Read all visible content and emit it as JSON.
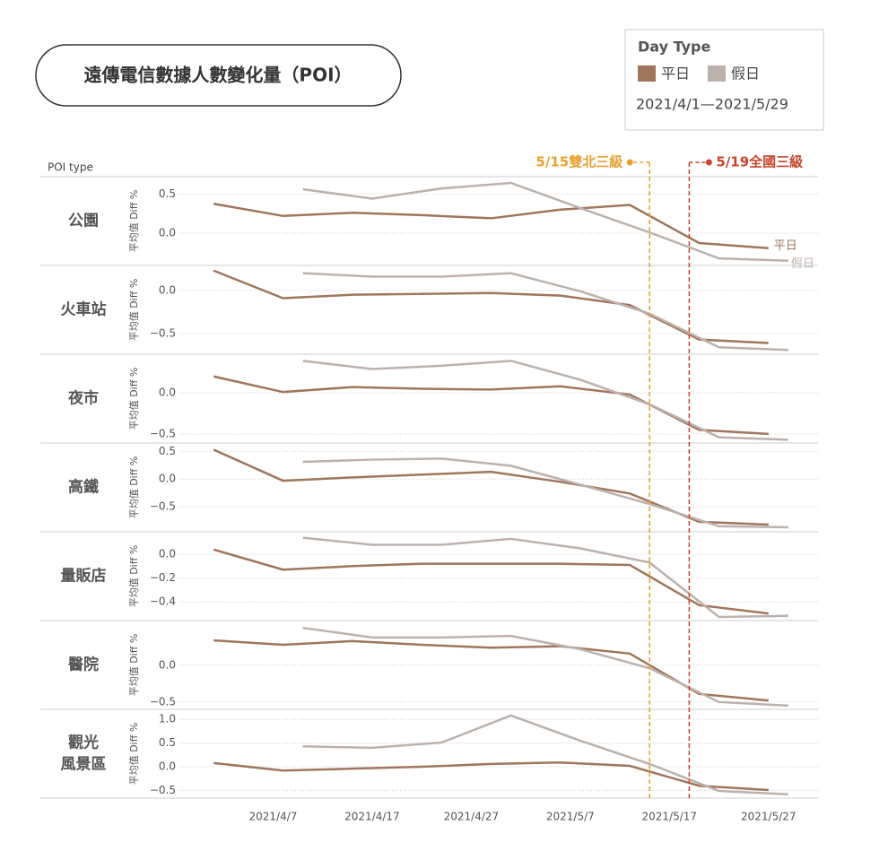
{
  "chart_data": {
    "type": "line",
    "title": "遠傳電信數據人數變化量（POI）",
    "legend_title": "Day Type",
    "date_range": "2021/4/1—2021/5/29",
    "facet_label": "POI type",
    "y_label": "平均值 Diff %",
    "xlim": [
      "2021/3/28",
      "2021/6/1"
    ],
    "xticks": [
      "2021/4/7",
      "2021/4/17",
      "2021/4/27",
      "2021/5/7",
      "2021/5/17",
      "2021/5/27"
    ],
    "series": [
      {
        "name": "平日",
        "color": "#a0765c",
        "x": [
          "2021/4/1",
          "2021/4/8",
          "2021/4/15",
          "2021/4/22",
          "2021/4/29",
          "2021/5/6",
          "2021/5/13",
          "2021/5/20",
          "2021/5/27"
        ]
      },
      {
        "name": "假日",
        "color": "#bcb2ad",
        "x": [
          "2021/4/10",
          "2021/4/17",
          "2021/4/24",
          "2021/5/1",
          "2021/5/8",
          "2021/5/15",
          "2021/5/22",
          "2021/5/29"
        ]
      }
    ],
    "annotations": [
      {
        "x": "2021/5/15",
        "label": "5/15雙北三級",
        "color": "#e8a030"
      },
      {
        "x": "2021/5/19",
        "label": "5/19全國三級",
        "color": "#c8452c"
      }
    ],
    "panels": [
      {
        "name": [
          "公園"
        ],
        "ylim": [
          -0.41,
          0.72
        ],
        "yticks": [
          {
            "value": 0,
            "label": "0.0"
          },
          0.5
        ],
        "series": [
          [
            0.375,
            0.22,
            0.26,
            0.23,
            0.19,
            0.3,
            0.36,
            -0.125,
            -0.19
          ],
          [
            0.56,
            0.44,
            0.57,
            0.64,
            0.32,
            0.01,
            -0.32,
            -0.35
          ]
        ]
      },
      {
        "name": [
          "火車站"
        ],
        "ylim": [
          -0.74,
          0.29
        ],
        "yticks": [
          {
            "value": -0.5,
            "label": "−0.5"
          },
          {
            "value": 0,
            "label": "0.0"
          }
        ],
        "series": [
          [
            0.23,
            -0.09,
            -0.05,
            -0.04,
            -0.03,
            -0.06,
            -0.17,
            -0.57,
            -0.61
          ],
          [
            0.2,
            0.16,
            0.16,
            0.2,
            -0.01,
            -0.27,
            -0.66,
            -0.69
          ]
        ]
      },
      {
        "name": [
          "夜市"
        ],
        "ylim": [
          -0.61,
          0.47
        ],
        "yticks": [
          {
            "value": -0.5,
            "label": "−0.5"
          },
          {
            "value": 0,
            "label": "0.0"
          }
        ],
        "series": [
          [
            0.2,
            0.01,
            0.07,
            0.05,
            0.04,
            0.08,
            -0.02,
            -0.45,
            -0.5
          ],
          [
            0.39,
            0.29,
            0.33,
            0.39,
            0.16,
            -0.14,
            -0.54,
            -0.57
          ]
        ]
      },
      {
        "name": [
          "高鐵"
        ],
        "ylim": [
          -0.95,
          0.65
        ],
        "yticks": [
          {
            "value": -0.5,
            "label": "−0.5"
          },
          {
            "value": 0,
            "label": "0.0"
          },
          0.5
        ],
        "series": [
          [
            0.53,
            -0.03,
            0.03,
            0.08,
            0.13,
            -0.05,
            -0.26,
            -0.77,
            -0.82
          ],
          [
            0.31,
            0.35,
            0.37,
            0.24,
            -0.1,
            -0.45,
            -0.85,
            -0.87
          ]
        ]
      },
      {
        "name": [
          "量販店"
        ],
        "ylim": [
          -0.56,
          0.19
        ],
        "yticks": [
          {
            "value": -0.4,
            "label": "−0.4"
          },
          {
            "value": -0.2,
            "label": "−0.2"
          },
          {
            "value": 0,
            "label": "0.0"
          }
        ],
        "series": [
          [
            0.04,
            -0.13,
            -0.1,
            -0.08,
            -0.08,
            -0.08,
            -0.09,
            -0.43,
            -0.5
          ],
          [
            0.14,
            0.08,
            0.08,
            0.13,
            0.05,
            -0.07,
            -0.53,
            -0.52
          ]
        ]
      },
      {
        "name": [
          "醫院"
        ],
        "ylim": [
          -0.6,
          0.61
        ],
        "yticks": [
          {
            "value": -0.5,
            "label": "−0.5"
          },
          {
            "value": 0,
            "label": "0.0"
          }
        ],
        "series": [
          [
            0.34,
            0.28,
            0.33,
            0.28,
            0.24,
            0.26,
            0.16,
            -0.39,
            -0.48
          ],
          [
            0.51,
            0.38,
            0.38,
            0.4,
            0.22,
            -0.04,
            -0.5,
            -0.55
          ]
        ]
      },
      {
        "name": [
          "觀光",
          "風景區"
        ],
        "ylim": [
          -0.66,
          1.21
        ],
        "yticks": [
          {
            "value": -0.5,
            "label": "−0.5"
          },
          {
            "value": 0,
            "label": "0.0"
          },
          0.5,
          {
            "value": 1,
            "label": "1.0"
          }
        ],
        "series": [
          [
            0.08,
            -0.08,
            -0.04,
            0,
            0.06,
            0.09,
            0.02,
            -0.4,
            -0.49
          ],
          [
            0.43,
            0.4,
            0.51,
            1.08,
            0.55,
            0.06,
            -0.51,
            -0.58
          ]
        ]
      }
    ]
  }
}
